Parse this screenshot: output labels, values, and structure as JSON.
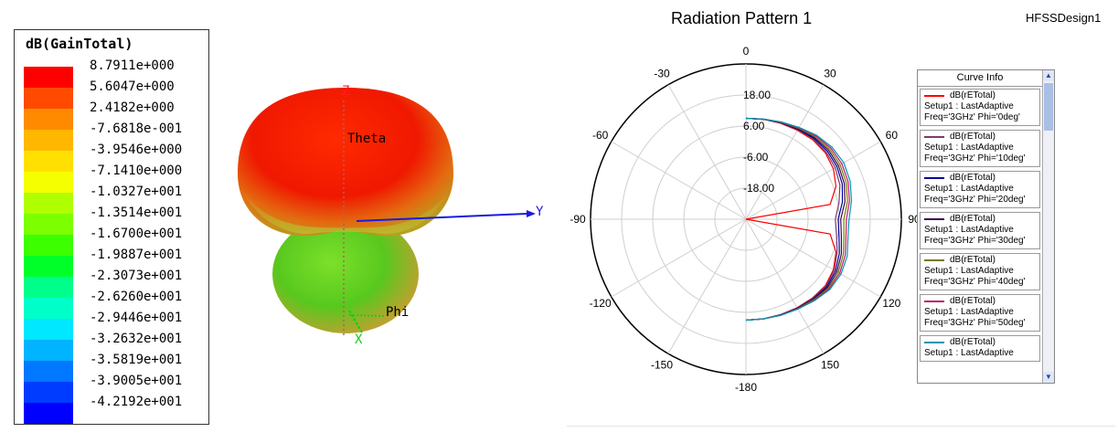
{
  "legend": {
    "title": "dB(GainTotal)",
    "levels": [
      "8.7911e+000",
      "5.6047e+000",
      "2.4182e+000",
      "-7.6818e-001",
      "-3.9546e+000",
      "-7.1410e+000",
      "-1.0327e+001",
      "-1.3514e+001",
      "-1.6700e+001",
      "-1.9887e+001",
      "-2.3073e+001",
      "-2.6260e+001",
      "-2.9446e+001",
      "-3.2632e+001",
      "-3.5819e+001",
      "-3.9005e+001",
      "-4.2192e+001"
    ],
    "colors": [
      "#ff0000",
      "#ff4a00",
      "#ff8a00",
      "#ffb700",
      "#ffe000",
      "#f5ff00",
      "#b0ff00",
      "#7cff00",
      "#3cff00",
      "#00ff28",
      "#00ff8a",
      "#00ffc8",
      "#00e8ff",
      "#00b4ff",
      "#0078ff",
      "#003cff",
      "#0000ff"
    ]
  },
  "view3d": {
    "axis_z": "Z",
    "axis_y": "Y",
    "axis_x": "X",
    "label_theta": "Theta",
    "label_phi": "Phi"
  },
  "chart_data": {
    "type": "polar-line",
    "title": "Radiation Pattern 1",
    "design": "HFSSDesign1",
    "radial_ticks": [
      "18.00",
      "6.00",
      "-6.00",
      "-18.00"
    ],
    "angle_ticks": [
      "0",
      "30",
      "60",
      "90",
      "120",
      "150",
      "-180",
      "-150",
      "-120",
      "-90",
      "-60",
      "-30"
    ],
    "radial_range": [
      -30,
      30
    ],
    "angles": [
      0,
      10,
      20,
      30,
      40,
      50,
      60,
      70,
      80,
      90,
      100,
      110,
      120,
      130,
      140,
      150,
      160,
      170,
      180
    ],
    "series": [
      {
        "name": "dB(rETotal)",
        "setup": "Setup1 : LastAdaptive",
        "freq": "Freq='3GHz' Phi='0deg'",
        "color": "#ff0000",
        "values": [
          9,
          9.2,
          9.4,
          9.7,
          10.1,
          10,
          9,
          7,
          3,
          -30,
          3,
          7,
          9,
          10,
          9.8,
          9.5,
          9.2,
          9.1,
          9
        ]
      },
      {
        "name": "dB(rETotal)",
        "setup": "Setup1 : LastAdaptive",
        "freq": "Freq='3GHz' Phi='10deg'",
        "color": "#7a3a6e",
        "values": [
          9,
          9.2,
          9.6,
          10,
          10.4,
          10.4,
          9.8,
          8.6,
          6.5,
          4.5,
          5.5,
          7.5,
          9.4,
          10.3,
          10,
          9.6,
          9.3,
          9.1,
          9
        ]
      },
      {
        "name": "dB(rETotal)",
        "setup": "Setup1 : LastAdaptive",
        "freq": "Freq='3GHz' Phi='20deg'",
        "color": "#00009a",
        "values": [
          9,
          9.2,
          9.6,
          10.2,
          10.8,
          11,
          10.6,
          9.6,
          7.8,
          5.6,
          6.5,
          8.4,
          10,
          10.7,
          10.3,
          9.7,
          9.3,
          9.1,
          9
        ]
      },
      {
        "name": "dB(rETotal)",
        "setup": "Setup1 : LastAdaptive",
        "freq": "Freq='3GHz' Phi='30deg'",
        "color": "#3a0a4e",
        "values": [
          9,
          9.2,
          9.7,
          10.4,
          11.2,
          11.6,
          11.3,
          10.4,
          8.8,
          6.6,
          7.4,
          9.2,
          10.6,
          11.1,
          10.5,
          9.8,
          9.4,
          9.1,
          9
        ]
      },
      {
        "name": "dB(rETotal)",
        "setup": "Setup1 : LastAdaptive",
        "freq": "Freq='3GHz' Phi='40deg'",
        "color": "#7a7a00",
        "values": [
          9,
          9.3,
          9.8,
          10.6,
          11.6,
          12.2,
          12,
          11.2,
          9.8,
          7.8,
          8.4,
          10,
          11.2,
          11.5,
          10.7,
          9.9,
          9.4,
          9.1,
          9
        ]
      },
      {
        "name": "dB(rETotal)",
        "setup": "Setup1 : LastAdaptive",
        "freq": "Freq='3GHz' Phi='50deg'",
        "color": "#c0186a",
        "values": [
          9,
          9.3,
          9.9,
          10.8,
          12,
          12.8,
          12.8,
          12,
          10.6,
          8.8,
          9.2,
          10.8,
          11.8,
          11.9,
          10.9,
          10,
          9.5,
          9.1,
          9
        ]
      },
      {
        "name": "dB(rETotal)",
        "setup": "Setup1 : LastAdaptive",
        "freq": "",
        "color": "#0096b4",
        "values": [
          9,
          9.3,
          10,
          11,
          12.4,
          13.4,
          13.6,
          12.8,
          11.4,
          9.8,
          10,
          11.6,
          12.4,
          12.3,
          11.1,
          10.1,
          9.5,
          9.1,
          9
        ]
      }
    ]
  },
  "curve_info": {
    "title": "Curve Info"
  }
}
